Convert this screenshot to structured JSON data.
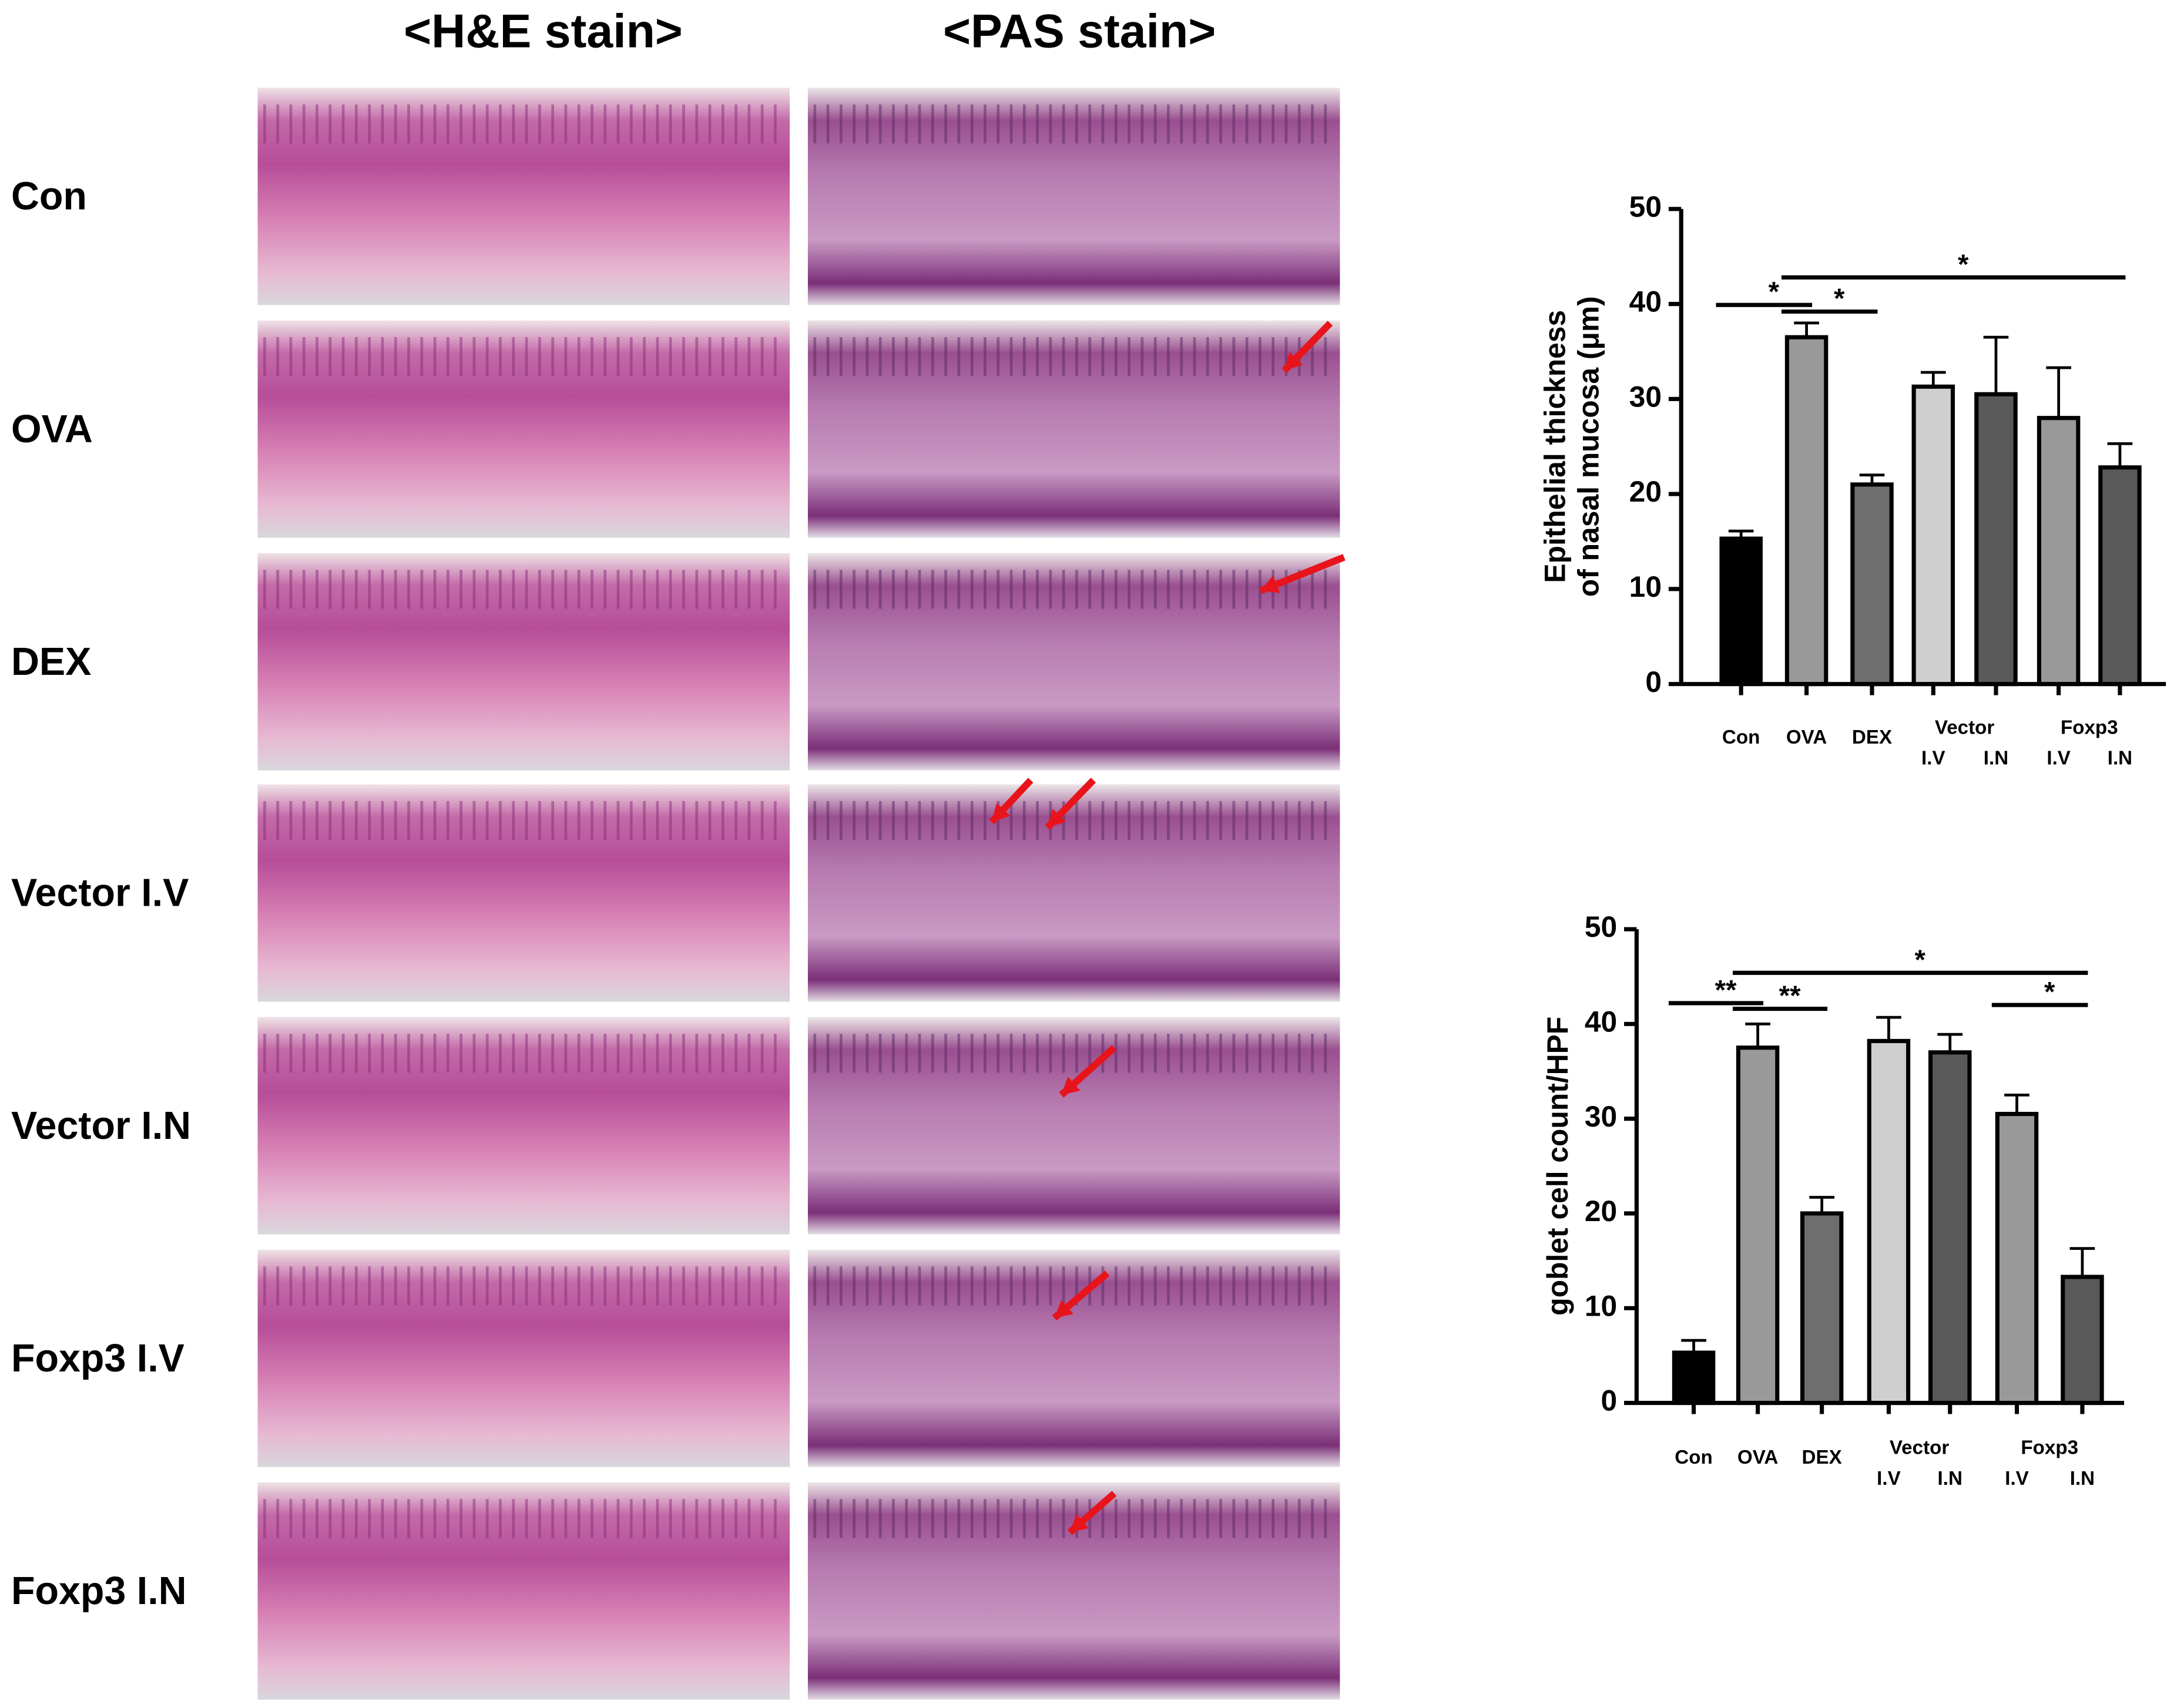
{
  "panels": {
    "headers": [
      "<H&E stain>",
      "<PAS stain>"
    ],
    "rows": [
      "Con",
      "OVA",
      "DEX",
      "Vector I.V",
      "Vector I.N",
      "Foxp3 I.V",
      "Foxp3 I.N"
    ]
  },
  "chart_data": [
    {
      "type": "bar",
      "y_label": [
        "Epithelial thickness",
        "of nasal mucosa (μm)"
      ],
      "categories": [
        "Con",
        "OVA",
        "DEX",
        "I.V",
        "I.N",
        "I.V",
        "I.N"
      ],
      "group_labels": [
        "Vector",
        "Foxp3"
      ],
      "values": [
        15.3,
        36.5,
        21,
        31.3,
        30.5,
        28,
        22.8
      ],
      "errors": [
        0.8,
        1.5,
        1,
        1.5,
        6,
        5.3,
        2.5
      ],
      "colors": [
        "#000000",
        "#999999",
        "#6e6e6e",
        "#cfcfcf",
        "#595959",
        "#999999",
        "#595959"
      ],
      "ylim": [
        0,
        50
      ],
      "yticks": [
        0,
        10,
        20,
        30,
        40,
        50
      ],
      "annotations": [
        "*",
        "*",
        "*"
      ]
    },
    {
      "type": "bar",
      "y_label": [
        "goblet cell count/HPF"
      ],
      "categories": [
        "Con",
        "OVA",
        "DEX",
        "I.V",
        "I.N",
        "I.V",
        "I.N"
      ],
      "group_labels": [
        "Vector",
        "Foxp3"
      ],
      "values": [
        5.3,
        37.5,
        20,
        38.2,
        37,
        30.5,
        13.3
      ],
      "errors": [
        1.3,
        2.5,
        1.7,
        2.5,
        1.9,
        2,
        3
      ],
      "colors": [
        "#000000",
        "#999999",
        "#6e6e6e",
        "#cfcfcf",
        "#595959",
        "#999999",
        "#595959"
      ],
      "ylim": [
        0,
        50
      ],
      "yticks": [
        0,
        10,
        20,
        30,
        40,
        50
      ],
      "annotations": [
        "**",
        "**",
        "*",
        "*"
      ]
    }
  ]
}
